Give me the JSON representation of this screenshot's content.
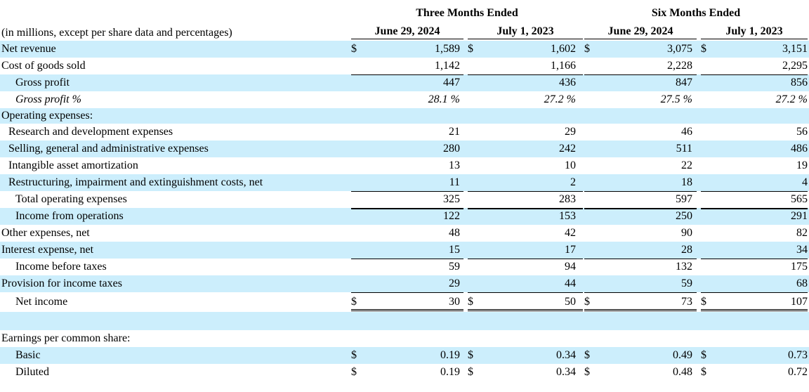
{
  "header": {
    "group_labels": [
      "Three Months Ended",
      "Six Months Ended"
    ],
    "columns": [
      "June 29, 2024",
      "July 1, 2023",
      "June 29, 2024",
      "July 1, 2023"
    ],
    "note": "(in millions, except per share data and percentages)"
  },
  "rows": [
    {
      "label": "Net revenue",
      "dollar": true,
      "values": [
        "1,589",
        "1,602",
        "3,075",
        "3,151"
      ]
    },
    {
      "label": "Cost of goods sold",
      "values": [
        "1,142",
        "1,166",
        "2,228",
        "2,295"
      ]
    },
    {
      "label": "Gross profit",
      "values": [
        "447",
        "436",
        "847",
        "856"
      ]
    },
    {
      "label": "Gross profit %",
      "values": [
        "28.1 %",
        "27.2 %",
        "27.5 %",
        "27.2 %"
      ]
    },
    {
      "label": "Operating expenses:",
      "values": []
    },
    {
      "label": "Research and development expenses",
      "values": [
        "21",
        "29",
        "46",
        "56"
      ]
    },
    {
      "label": "Selling, general and administrative expenses",
      "values": [
        "280",
        "242",
        "511",
        "486"
      ]
    },
    {
      "label": "Intangible asset amortization",
      "values": [
        "13",
        "10",
        "22",
        "19"
      ]
    },
    {
      "label": "Restructuring, impairment and extinguishment costs, net",
      "values": [
        "11",
        "2",
        "18",
        "4"
      ]
    },
    {
      "label": "Total operating expenses",
      "values": [
        "325",
        "283",
        "597",
        "565"
      ]
    },
    {
      "label": "Income from operations",
      "values": [
        "122",
        "153",
        "250",
        "291"
      ]
    },
    {
      "label": "Other expenses, net",
      "values": [
        "48",
        "42",
        "90",
        "82"
      ]
    },
    {
      "label": "Interest expense, net",
      "values": [
        "15",
        "17",
        "28",
        "34"
      ]
    },
    {
      "label": "Income before taxes",
      "values": [
        "59",
        "94",
        "132",
        "175"
      ]
    },
    {
      "label": "Provision for income taxes",
      "values": [
        "29",
        "44",
        "59",
        "68"
      ]
    },
    {
      "label": "Net income",
      "dollar": true,
      "values": [
        "30",
        "50",
        "73",
        "107"
      ]
    },
    {
      "label": "",
      "values": []
    },
    {
      "label": "Earnings per common share:",
      "values": []
    },
    {
      "label": "Basic",
      "dollar": true,
      "values": [
        "0.19",
        "0.34",
        "0.49",
        "0.73"
      ]
    },
    {
      "label": "Diluted",
      "dollar": true,
      "values": [
        "0.19",
        "0.34",
        "0.48",
        "0.72"
      ]
    }
  ],
  "currency_symbol": "$",
  "colors": {
    "row_shade": "#cceefc",
    "text": "#000000",
    "rule": "#000000"
  }
}
